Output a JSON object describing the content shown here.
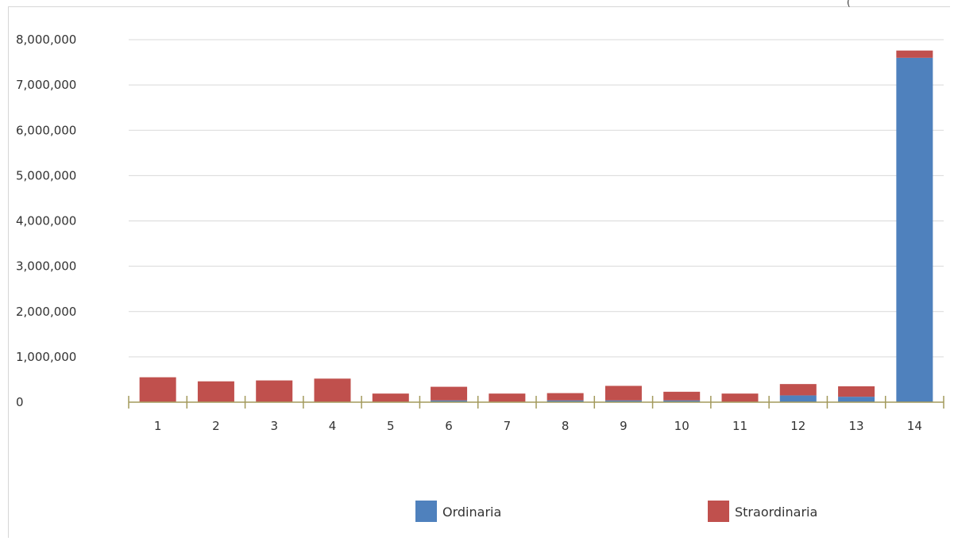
{
  "corner_mark": "(",
  "chart_data": {
    "type": "bar",
    "stacked": true,
    "title": "",
    "xlabel": "",
    "ylabel": "",
    "categories": [
      "1",
      "2",
      "3",
      "4",
      "5",
      "6",
      "7",
      "8",
      "9",
      "10",
      "11",
      "12",
      "13",
      "14"
    ],
    "series": [
      {
        "name": "Ordinaria",
        "color": "#4f81bd",
        "values": [
          10000,
          10000,
          10000,
          10000,
          10000,
          40000,
          10000,
          40000,
          40000,
          40000,
          10000,
          150000,
          120000,
          7600000
        ]
      },
      {
        "name": "Straordinaria",
        "color": "#c0504d",
        "values": [
          540000,
          450000,
          470000,
          510000,
          180000,
          300000,
          180000,
          160000,
          320000,
          190000,
          180000,
          250000,
          230000,
          160000
        ]
      }
    ],
    "ylim": [
      0,
      8000000
    ],
    "yticks": [
      0,
      1000000,
      2000000,
      3000000,
      4000000,
      5000000,
      6000000,
      7000000,
      8000000
    ],
    "ytick_labels": [
      "0",
      "1,000,000",
      "2,000,000",
      "3,000,000",
      "4,000,000",
      "5,000,000",
      "6,000,000",
      "7,000,000",
      "8,000,000"
    ],
    "grid": true,
    "legend_position": "bottom"
  }
}
